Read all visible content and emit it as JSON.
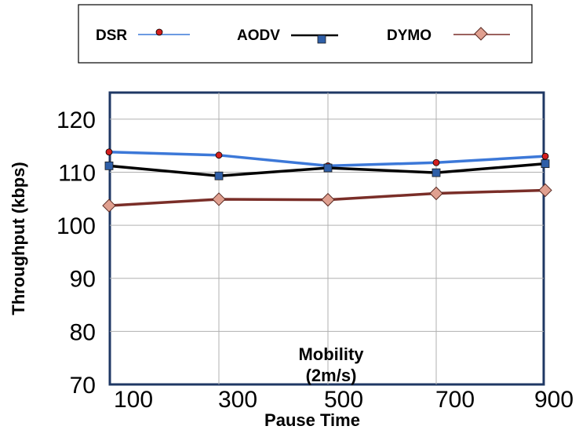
{
  "chart_data": {
    "type": "line",
    "title": "",
    "xlabel": "Pause Time",
    "ylabel": "Throughput (kbps)",
    "x": [
      100,
      300,
      500,
      700,
      900
    ],
    "x_tick_labels": [
      "100",
      "300",
      "500",
      "700",
      "900"
    ],
    "y_ticks": [
      70,
      80,
      90,
      100,
      110,
      120
    ],
    "y_tick_labels": [
      "70",
      "80",
      "90",
      "100",
      "110",
      "120"
    ],
    "ylim": [
      70,
      125
    ],
    "grid": true,
    "legend_position": "top",
    "annotation": [
      "Mobility",
      "(2m/s)"
    ],
    "series": [
      {
        "name": "DSR",
        "values": [
          113.8,
          113.2,
          111.2,
          111.8,
          113.0
        ],
        "line_color": "#3c78d8",
        "marker": "circle",
        "marker_color": "#d21e1e"
      },
      {
        "name": "AODV",
        "values": [
          111.2,
          109.3,
          110.8,
          109.9,
          111.6
        ],
        "line_color": "#000000",
        "marker": "square",
        "marker_color": "#2f5fa8"
      },
      {
        "name": "DYMO",
        "values": [
          103.7,
          104.9,
          104.8,
          106.0,
          106.6
        ],
        "line_color": "#7a2e28",
        "marker": "diamond",
        "marker_color": "#e0a090"
      }
    ]
  }
}
